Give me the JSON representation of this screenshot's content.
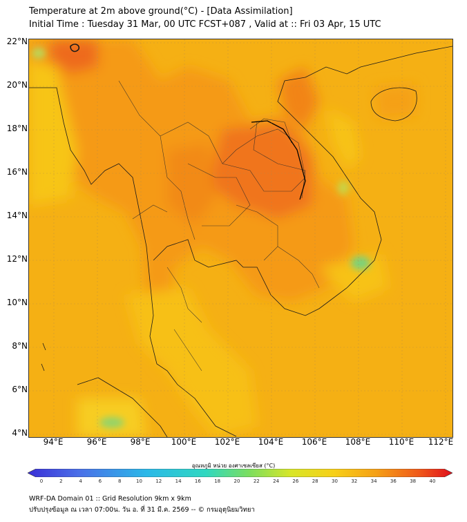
{
  "header": {
    "title_line1": "Temperature at 2m above ground(°C) - [Data Assimilation]",
    "title_line2": "Initial Time : Tuesday 31 Mar, 00 UTC FCST+087 , Valid at :: Fri 03 Apr, 15 UTC"
  },
  "map": {
    "lat_labels": [
      "22°N",
      "20°N",
      "18°N",
      "16°N",
      "14°N",
      "12°N",
      "10°N",
      "8°N",
      "6°N",
      "4°N"
    ],
    "lon_labels": [
      "94°E",
      "96°E",
      "98°E",
      "100°E",
      "102°E",
      "104°E",
      "106°E",
      "108°E",
      "110°E",
      "112°E"
    ],
    "base_color": "#f5b016"
  },
  "colorbar": {
    "label": "อุณหภูมิ หน่วย องศาเซลเซียส (°C)",
    "ticks": [
      "0",
      "2",
      "4",
      "6",
      "8",
      "10",
      "12",
      "14",
      "16",
      "18",
      "20",
      "22",
      "24",
      "26",
      "28",
      "30",
      "32",
      "34",
      "36",
      "38",
      "40"
    ],
    "min_color": "#3a2fd6",
    "max_color": "#e0101c"
  },
  "footer": {
    "line1": "WRF-DA Domain 01 :: Grid Resolution 9km x 9km",
    "line2": "ปรับปรุงข้อมูล ณ เวลา 07:00น. วัน อ. ที่ 31 มี.ค. 2569 -- © กรมอุตุนิยมวิทยา"
  }
}
